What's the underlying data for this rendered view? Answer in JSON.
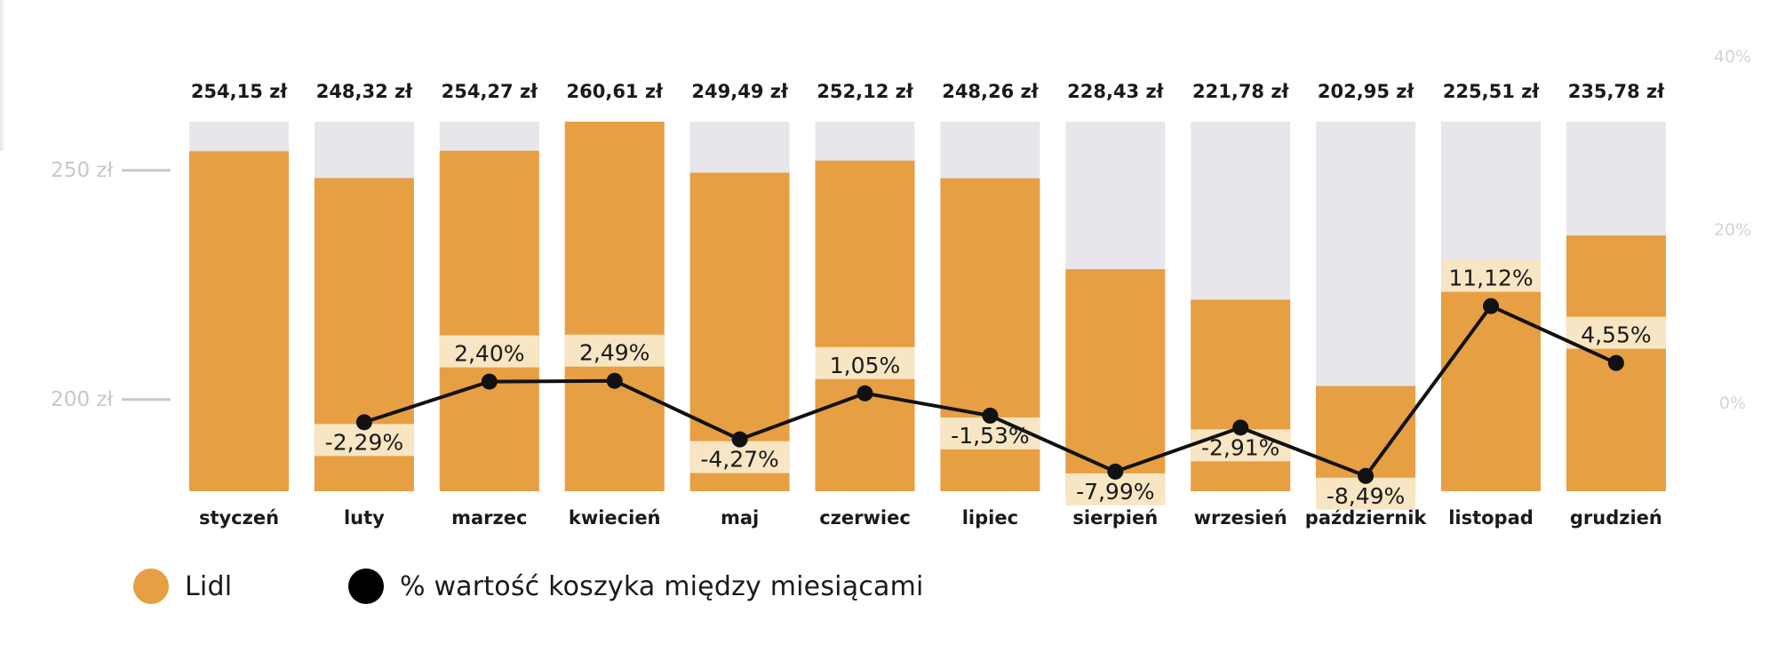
{
  "chart_data": {
    "type": "bar",
    "categories": [
      "styczeń",
      "luty",
      "marzec",
      "kwiecień",
      "maj",
      "czerwiec",
      "lipiec",
      "sierpień",
      "wrzesień",
      "październik",
      "listopad",
      "grudzień"
    ],
    "series": [
      {
        "name": "Lidl",
        "kind": "bar",
        "values": [
          254.15,
          248.32,
          254.27,
          260.61,
          249.49,
          252.12,
          248.26,
          228.43,
          221.78,
          202.95,
          225.51,
          235.78
        ],
        "value_labels": [
          "254,15 zł",
          "248,32 zł",
          "254,27 zł",
          "260,61 zł",
          "249,49 zł",
          "252,12 zł",
          "248,26 zł",
          "228,43 zł",
          "221,78 zł",
          "202,95 zł",
          "225,51 zł",
          "235,78 zł"
        ]
      },
      {
        "name": "% wartość koszyka między miesiącami",
        "kind": "line",
        "axis": "right",
        "values": [
          null,
          -2.29,
          2.4,
          2.49,
          -4.27,
          1.05,
          -1.53,
          -7.99,
          -2.91,
          -8.49,
          11.12,
          4.55
        ],
        "value_labels": [
          "",
          "-2,29%",
          "2,40%",
          "2,49%",
          "-4,27%",
          "1,05%",
          "-1,53%",
          "-7,99%",
          "-2,91%",
          "-8,49%",
          "11,12%",
          "4,55%"
        ]
      }
    ],
    "left_axis": {
      "ylim": [
        180,
        260.61
      ],
      "ticks": [
        250,
        200
      ],
      "tick_labels": [
        "250 zł",
        "200 zł"
      ]
    },
    "right_axis": {
      "ylim": [
        -10,
        40
      ],
      "ticks": [
        40,
        20,
        0
      ],
      "tick_labels": [
        "40%",
        "20%",
        "0%"
      ]
    },
    "grid": false,
    "legend_position": "bottom-left",
    "colors": {
      "bar": "#E69F43",
      "bar_background": "#E8E6EA",
      "label_highlight": "#F8E5C3",
      "line": "#111111",
      "axis_text": "#C8C8C8",
      "text": "#1A1A1A"
    }
  },
  "legend": {
    "items": [
      {
        "label": "Lidl",
        "color": "#E69F43"
      },
      {
        "label": "% wartość koszyka między miesiącami",
        "color": "#000000"
      }
    ]
  }
}
